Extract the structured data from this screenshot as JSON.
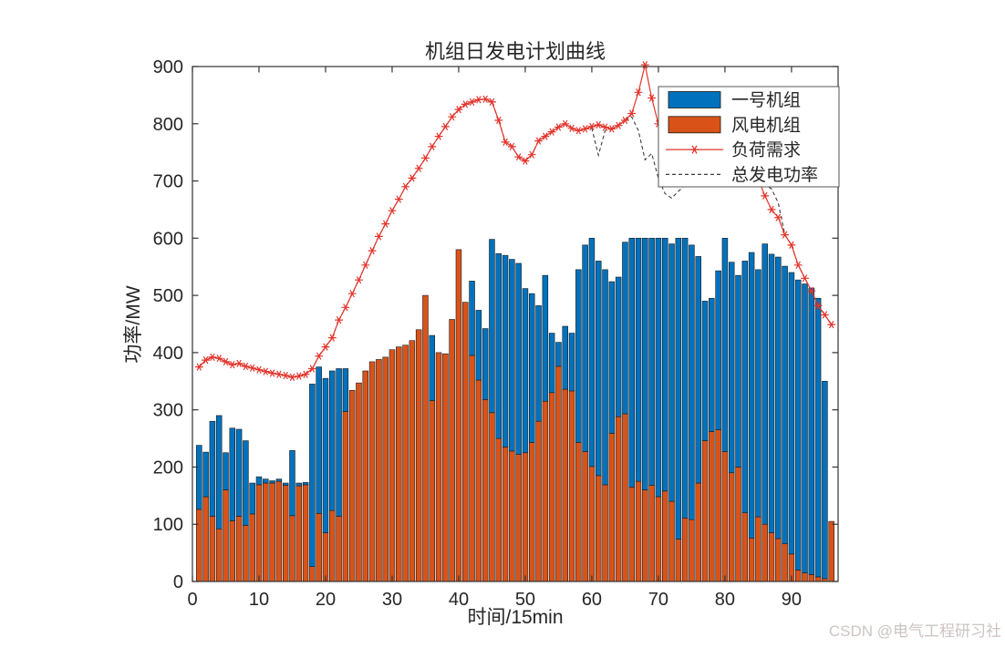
{
  "title": "机组日发电计划曲线",
  "xlabel": "时间/15min",
  "ylabel": "功率/MW",
  "watermark": "CSDN @电气工程研习社",
  "colors": {
    "unit1_blue": "#0072BD",
    "wind_orange": "#D95319",
    "load_red": "#e3342b",
    "total_gen_dash": "#3c3c3c",
    "axis": "#333333",
    "legend_border": "#555555"
  },
  "legend": [
    {
      "label": "一号机组",
      "type": "bar",
      "color": "#0072BD"
    },
    {
      "label": "风电机组",
      "type": "bar",
      "color": "#D95319"
    },
    {
      "label": "负荷需求",
      "type": "line-asterisk",
      "color": "#e3342b"
    },
    {
      "label": "总发电功率",
      "type": "dashed-line",
      "color": "#3c3c3c"
    }
  ],
  "axes": {
    "xlim": [
      0,
      97
    ],
    "ylim": [
      0,
      900
    ],
    "xticks": [
      0,
      10,
      20,
      30,
      40,
      50,
      60,
      70,
      80,
      90
    ],
    "yticks": [
      0,
      100,
      200,
      300,
      400,
      500,
      600,
      700,
      800,
      900
    ],
    "grid": false,
    "box": true
  },
  "chart_data": {
    "type": "bar",
    "subtype": "stacked-bars-with-lines",
    "title": "机组日发电计划曲线",
    "xlabel": "时间/15min",
    "ylabel": "功率/MW",
    "xlim": [
      0,
      97
    ],
    "ylim": [
      0,
      900
    ],
    "legend_position": "top-right",
    "x": [
      1,
      2,
      3,
      4,
      5,
      6,
      7,
      8,
      9,
      10,
      11,
      12,
      13,
      14,
      15,
      16,
      17,
      18,
      19,
      20,
      21,
      22,
      23,
      24,
      25,
      26,
      27,
      28,
      29,
      30,
      31,
      32,
      33,
      34,
      35,
      36,
      37,
      38,
      39,
      40,
      41,
      42,
      43,
      44,
      45,
      46,
      47,
      48,
      49,
      50,
      51,
      52,
      53,
      54,
      55,
      56,
      57,
      58,
      59,
      60,
      61,
      62,
      63,
      64,
      65,
      66,
      67,
      68,
      69,
      70,
      71,
      72,
      73,
      74,
      75,
      76,
      77,
      78,
      79,
      80,
      81,
      82,
      83,
      84,
      85,
      86,
      87,
      88,
      89,
      90,
      91,
      92,
      93,
      94,
      95,
      96
    ],
    "series": [
      {
        "name": "风电机组",
        "type": "bar",
        "stack_order": "bottom",
        "color": "#D95319",
        "values": [
          126,
          148,
          114,
          92,
          160,
          106,
          114,
          98,
          118,
          169,
          172,
          172,
          175,
          168,
          115,
          167,
          169,
          26,
          119,
          85,
          124,
          114,
          297,
          334,
          347,
          368,
          384,
          388,
          392,
          405,
          410,
          413,
          421,
          440,
          500,
          316,
          400,
          398,
          458,
          580,
          488,
          395,
          352,
          318,
          295,
          250,
          235,
          228,
          222,
          225,
          243,
          280,
          315,
          330,
          376,
          336,
          333,
          243,
          227,
          201,
          185,
          169,
          259,
          288,
          293,
          165,
          175,
          160,
          168,
          148,
          158,
          140,
          74,
          111,
          108,
          172,
          246,
          262,
          265,
          227,
          190,
          200,
          120,
          76,
          113,
          100,
          85,
          75,
          66,
          48,
          20,
          15,
          12,
          8,
          5,
          105
        ]
      },
      {
        "name": "一号机组",
        "type": "bar",
        "stack_order": "top",
        "color": "#0072BD",
        "values": [
          112,
          78,
          166,
          198,
          65,
          162,
          152,
          148,
          54,
          14,
          7,
          4,
          4,
          4,
          114,
          5,
          4,
          319,
          256,
          270,
          244,
          258,
          75,
          0,
          0,
          0,
          0,
          0,
          0,
          0,
          0,
          0,
          0,
          0,
          0,
          114,
          0,
          0,
          0,
          0,
          0,
          130,
          122,
          124,
          303,
          323,
          335,
          335,
          334,
          287,
          260,
          202,
          220,
          104,
          42,
          110,
          101,
          302,
          361,
          399,
          375,
          376,
          265,
          244,
          300,
          435,
          425,
          440,
          432,
          452,
          442,
          450,
          526,
          489,
          480,
          396,
          244,
          233,
          278,
          373,
          368,
          335,
          440,
          499,
          432,
          490,
          487,
          492,
          485,
          492,
          507,
          505,
          501,
          487,
          345,
          0
        ]
      },
      {
        "name": "负荷需求",
        "type": "line",
        "marker": "asterisk",
        "color": "#e3342b",
        "values": [
          375,
          387,
          392,
          390,
          384,
          379,
          381,
          376,
          373,
          370,
          367,
          364,
          362,
          360,
          357,
          359,
          362,
          372,
          394,
          410,
          426,
          457,
          479,
          503,
          527,
          553,
          578,
          603,
          625,
          648,
          668,
          690,
          705,
          722,
          740,
          760,
          778,
          795,
          812,
          825,
          834,
          838,
          842,
          843,
          838,
          806,
          768,
          760,
          742,
          735,
          746,
          770,
          778,
          786,
          794,
          800,
          792,
          788,
          791,
          795,
          798,
          794,
          791,
          797,
          806,
          818,
          855,
          903,
          845,
          800,
          790,
          785,
          778,
          775,
          780,
          787,
          793,
          799,
          797,
          794,
          789,
          774,
          754,
          730,
          704,
          674,
          650,
          636,
          606,
          588,
          553,
          530,
          508,
          482,
          466,
          449
        ]
      },
      {
        "name": "总发电功率",
        "type": "line",
        "style": "dashed",
        "marker": "none",
        "color": "#3c3c3c",
        "values": [
          375,
          387,
          392,
          390,
          384,
          379,
          381,
          376,
          373,
          370,
          367,
          364,
          362,
          360,
          357,
          359,
          362,
          372,
          394,
          410,
          426,
          457,
          479,
          503,
          527,
          553,
          578,
          603,
          625,
          648,
          668,
          690,
          705,
          722,
          740,
          760,
          778,
          795,
          812,
          825,
          834,
          838,
          842,
          843,
          838,
          806,
          768,
          760,
          742,
          735,
          746,
          770,
          778,
          786,
          794,
          800,
          792,
          788,
          791,
          792,
          745,
          788,
          791,
          797,
          806,
          812,
          788,
          737,
          748,
          705,
          678,
          670,
          682,
          692,
          702,
          712,
          722,
          730,
          736,
          741,
          744,
          740,
          731,
          718,
          704,
          694,
          686,
          662,
          606,
          588,
          553,
          530,
          508,
          482,
          466,
          449
        ]
      }
    ]
  }
}
